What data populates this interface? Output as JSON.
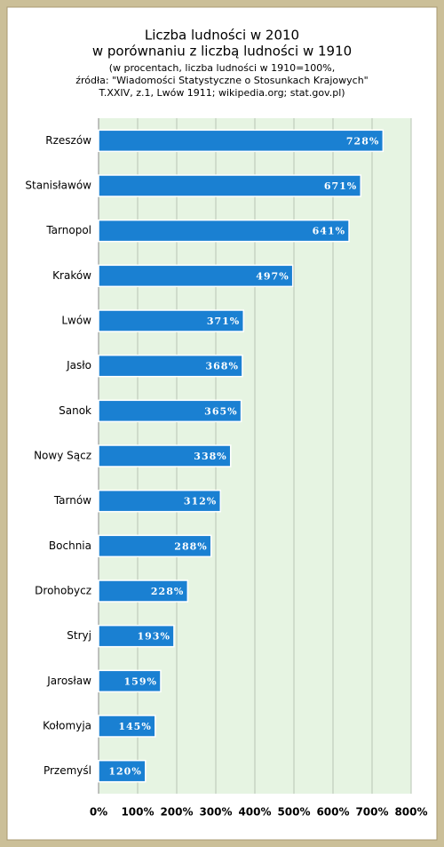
{
  "chart_data": {
    "type": "bar",
    "orientation": "horizontal",
    "title": [
      "Liczba ludności w 2010",
      "w porównaniu z liczbą ludności w 1910"
    ],
    "subtitle": [
      "(w procentach, liczba ludności w 1910=100%,",
      "źródła: \"Wiadomości Statystyczne o Stosunkach Krajowych\"",
      "T.XXIV, z.1, Lwów 1911; wikipedia.org; stat.gov.pl)"
    ],
    "categories": [
      "Rzeszów",
      "Stanisławów",
      "Tarnopol",
      "Kraków",
      "Lwów",
      "Jasło",
      "Sanok",
      "Nowy Sącz",
      "Tarnów",
      "Bochnia",
      "Drohobycz",
      "Stryj",
      "Jarosław",
      "Kołomyja",
      "Przemyśl"
    ],
    "values": [
      728,
      671,
      641,
      497,
      371,
      368,
      365,
      338,
      312,
      288,
      228,
      193,
      159,
      145,
      120
    ],
    "value_labels": [
      "728%",
      "671%",
      "641%",
      "497%",
      "371%",
      "368%",
      "365%",
      "338%",
      "312%",
      "288%",
      "228%",
      "193%",
      "159%",
      "145%",
      "120%"
    ],
    "color": "#1a80d2",
    "xlim": [
      0,
      800
    ],
    "xticks": [
      {
        "value": 0,
        "label": "0%"
      },
      {
        "value": 100,
        "label": "100%"
      },
      {
        "value": 200,
        "label": "200%"
      },
      {
        "value": 300,
        "label": "300%"
      },
      {
        "value": 400,
        "label": "400%"
      },
      {
        "value": 500,
        "label": "500%"
      },
      {
        "value": 600,
        "label": "600%"
      },
      {
        "value": 700,
        "label": "700%"
      },
      {
        "value": 800,
        "label": "800%"
      }
    ],
    "grid": true
  }
}
